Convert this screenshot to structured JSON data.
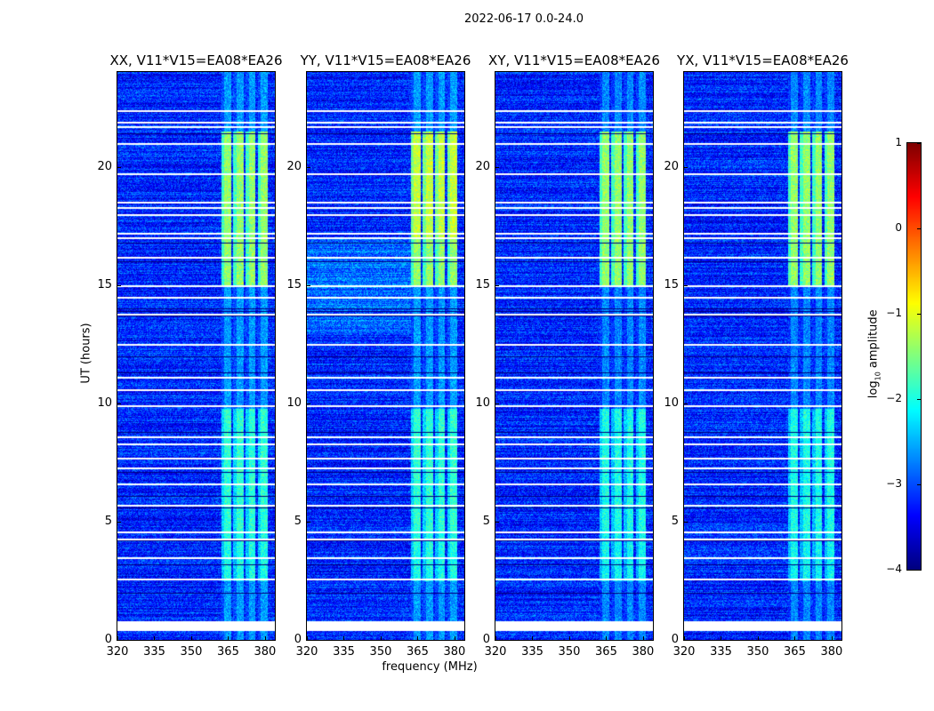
{
  "chart_data": {
    "type": "heatmap",
    "title": "2022-06-17 0.0-24.0",
    "xlabel": "frequency (MHz)",
    "ylabel": "UT (hours)",
    "xlim": [
      320,
      384
    ],
    "ylim": [
      0,
      24
    ],
    "xticks": [
      "320",
      "335",
      "350",
      "365",
      "380"
    ],
    "xtick_values": [
      320,
      335,
      350,
      365,
      380
    ],
    "yticks": [
      "0",
      "5",
      "10",
      "15",
      "20"
    ],
    "ytick_values": [
      0,
      5,
      10,
      15,
      20
    ],
    "panels": [
      {
        "title": "XX, V11*V15=EA08*EA26",
        "pol": "XX"
      },
      {
        "title": "YY, V11*V15=EA08*EA26",
        "pol": "YY"
      },
      {
        "title": "XY, V11*V15=EA08*EA26",
        "pol": "XY"
      },
      {
        "title": "YX, V11*V15=EA08*EA26",
        "pol": "YX"
      }
    ],
    "rfi_band_mhz": [
      362,
      381
    ],
    "rfi_subbands_mhz": [
      [
        362,
        366
      ],
      [
        367,
        371
      ],
      [
        372,
        376
      ],
      [
        377,
        381
      ]
    ],
    "background_log_amplitude": -3.2,
    "flagged_hours": [
      0.5,
      0.6,
      0.7,
      2.6,
      3.5,
      4.3,
      4.6,
      5.7,
      6.6,
      7.3,
      7.7,
      8.3,
      8.6,
      9.9,
      10.6,
      11.1,
      12.5,
      13.8,
      14.5,
      15.0,
      16.2,
      17.0,
      17.2,
      18.0,
      18.3,
      18.5,
      19.7,
      21.0,
      21.7,
      21.9,
      22.4
    ],
    "dark_hours": [
      2.0,
      3.2,
      4.2,
      5.6,
      6.1,
      7.1,
      8.8,
      11.3,
      12.0,
      13.7,
      13.9,
      14.0,
      16.0,
      16.8,
      21.4
    ],
    "colorbar": {
      "label": "log10 amplitude",
      "label_main": "log",
      "label_sub": "10",
      "label_rest": " amplitude",
      "range": [
        -4,
        1
      ],
      "ticks": [
        "1",
        "0",
        "−1",
        "−2",
        "−3",
        "−4"
      ],
      "tick_values": [
        1,
        0,
        -1,
        -2,
        -3,
        -4
      ],
      "colormap": "jet"
    }
  }
}
